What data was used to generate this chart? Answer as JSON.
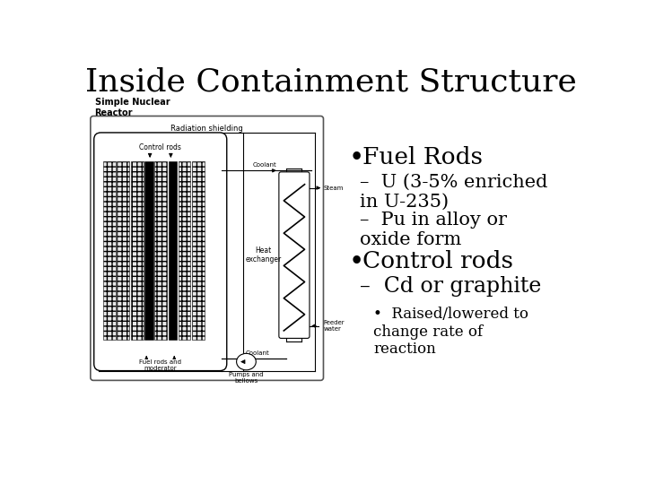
{
  "title": "Inside Containment Structure",
  "title_fontsize": 26,
  "title_font": "serif",
  "background_color": "#ffffff",
  "bullet1": "Fuel Rods",
  "bullet1_fontsize": 19,
  "sub1a": "U (3-5% enriched\nin U-235)",
  "sub1b": "Pu in alloy or\noxide form",
  "bullet2": "Control rods",
  "bullet2_fontsize": 19,
  "sub2a": "Cd or graphite",
  "sub2a_fontsize": 17,
  "sub2b": "Raised/lowered to\nchange rate of\nreaction",
  "sub2b_fontsize": 12,
  "sub_fontsize": 15,
  "diagram_label": "Simple Nuclear\nReactor",
  "diagram_label_fontsize": 7,
  "text_color": "#000000"
}
